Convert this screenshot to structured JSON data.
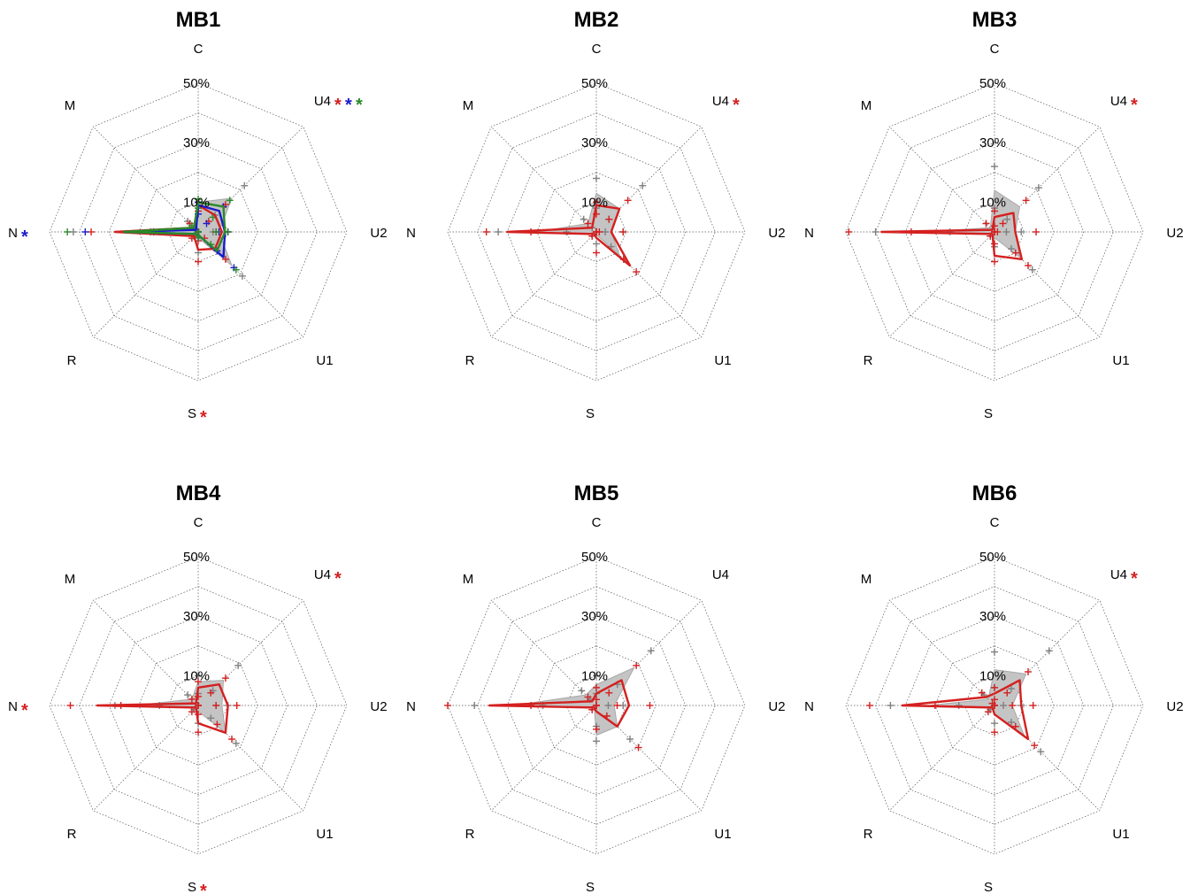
{
  "chart_data": [
    {
      "type": "radar",
      "title": "MB1",
      "axes": [
        {
          "label": "C",
          "marks": [
            "",
            "",
            ""
          ]
        },
        {
          "label": "U4",
          "marks": [
            "*",
            "*",
            "*"
          ]
        },
        {
          "label": "U2",
          "marks": [
            "",
            "",
            ""
          ]
        },
        {
          "label": "U1",
          "marks": [
            "",
            "",
            ""
          ]
        },
        {
          "label": "S",
          "marks": [
            "*",
            "",
            ""
          ]
        },
        {
          "label": "R",
          "marks": [
            "",
            "",
            ""
          ]
        },
        {
          "label": "N",
          "marks": [
            "",
            "*",
            ""
          ]
        },
        {
          "label": "M",
          "marks": [
            "",
            "",
            ""
          ]
        }
      ],
      "rlim": [
        0,
        50
      ],
      "rticks": [
        "10%",
        "30%",
        "50%"
      ],
      "reference": {
        "values": [
          10,
          16,
          7,
          16,
          2,
          1,
          27,
          2
        ],
        "upper": [
          10,
          22,
          10,
          21,
          7,
          2,
          42,
          5
        ],
        "lower": [
          8,
          8,
          5,
          6,
          0,
          0,
          13,
          0
        ]
      },
      "series": [
        {
          "color": "#d42020",
          "values": [
            9,
            8,
            8,
            8,
            6,
            2,
            28,
            2
          ],
          "upper": [
            10,
            13,
            10,
            13,
            10,
            3,
            36,
            4
          ],
          "lower": [
            7,
            5,
            6,
            3,
            3,
            1,
            16,
            1
          ]
        },
        {
          "color": "#1a1acc",
          "values": [
            9,
            10,
            9,
            12,
            1,
            1,
            25,
            1
          ],
          "upper": [
            10,
            12,
            10,
            17,
            2,
            2,
            38,
            2
          ],
          "lower": [
            6,
            4,
            7,
            9,
            0,
            0,
            15,
            0
          ]
        },
        {
          "color": "#2a8a2a",
          "values": [
            10,
            12,
            9,
            9,
            1,
            1,
            25,
            2
          ],
          "upper": [
            11,
            15,
            10,
            18,
            2,
            2,
            44,
            3
          ],
          "lower": [
            8,
            7,
            6,
            6,
            0,
            0,
            16,
            0
          ]
        }
      ]
    },
    {
      "type": "radar",
      "title": "MB2",
      "axes": [
        {
          "label": "C",
          "marks": [
            ""
          ]
        },
        {
          "label": "U4",
          "marks": [
            "*"
          ]
        },
        {
          "label": "U2",
          "marks": [
            ""
          ]
        },
        {
          "label": "U1",
          "marks": [
            ""
          ]
        },
        {
          "label": "S",
          "marks": [
            ""
          ]
        },
        {
          "label": "R",
          "marks": [
            ""
          ]
        },
        {
          "label": "N",
          "marks": [
            ""
          ]
        },
        {
          "label": "M",
          "marks": [
            ""
          ]
        }
      ],
      "rlim": [
        0,
        50
      ],
      "rticks": [
        "10%",
        "30%",
        "50%"
      ],
      "reference": {
        "values": [
          13,
          11,
          5,
          11,
          1,
          1,
          20,
          4
        ],
        "upper": [
          18,
          22,
          9,
          13,
          4,
          2,
          33,
          6
        ],
        "lower": [
          8,
          6,
          3,
          7,
          0,
          0,
          10,
          2
        ]
      },
      "series": [
        {
          "color": "#d42020",
          "values": [
            9,
            11,
            5,
            16,
            2,
            1,
            30,
            2
          ],
          "upper": [
            10,
            15,
            9,
            19,
            7,
            2,
            37,
            4
          ],
          "lower": [
            6,
            6,
            1,
            13,
            0,
            0,
            22,
            0
          ]
        }
      ]
    },
    {
      "type": "radar",
      "title": "MB3",
      "axes": [
        {
          "label": "C",
          "marks": [
            ""
          ]
        },
        {
          "label": "U4",
          "marks": [
            "*"
          ]
        },
        {
          "label": "U2",
          "marks": [
            ""
          ]
        },
        {
          "label": "U1",
          "marks": [
            ""
          ]
        },
        {
          "label": "S",
          "marks": [
            ""
          ]
        },
        {
          "label": "R",
          "marks": [
            ""
          ]
        },
        {
          "label": "N",
          "marks": [
            ""
          ]
        },
        {
          "label": "M",
          "marks": [
            ""
          ]
        }
      ],
      "rlim": [
        0,
        50
      ],
      "rticks": [
        "10%",
        "30%",
        "50%"
      ],
      "reference": {
        "values": [
          14,
          12,
          7,
          12,
          2,
          1,
          24,
          2
        ],
        "upper": [
          22,
          21,
          9,
          18,
          5,
          2,
          40,
          4
        ],
        "lower": [
          8,
          6,
          4,
          8,
          0,
          0,
          15,
          0
        ]
      },
      "series": [
        {
          "color": "#d42020",
          "values": [
            5,
            9,
            7,
            13,
            8,
            1,
            38,
            1
          ],
          "upper": [
            7,
            15,
            14,
            16,
            10,
            2,
            49,
            4
          ],
          "lower": [
            2,
            4,
            1,
            10,
            4,
            0,
            28,
            0
          ]
        }
      ]
    },
    {
      "type": "radar",
      "title": "MB4",
      "axes": [
        {
          "label": "C",
          "marks": [
            ""
          ]
        },
        {
          "label": "U4",
          "marks": [
            "*"
          ]
        },
        {
          "label": "U2",
          "marks": [
            ""
          ]
        },
        {
          "label": "U1",
          "marks": [
            ""
          ]
        },
        {
          "label": "S",
          "marks": [
            "*"
          ]
        },
        {
          "label": "R",
          "marks": [
            ""
          ]
        },
        {
          "label": "N",
          "marks": [
            "*"
          ]
        },
        {
          "label": "M",
          "marks": [
            ""
          ]
        }
      ],
      "rlim": [
        0,
        50
      ],
      "rticks": [
        "10%",
        "30%",
        "50%"
      ],
      "reference": {
        "values": [
          8,
          12,
          8,
          13,
          2,
          1,
          21,
          3
        ],
        "upper": [
          10,
          19,
          10,
          18,
          6,
          2,
          28,
          5
        ],
        "lower": [
          4,
          7,
          6,
          6,
          0,
          0,
          13,
          1
        ]
      },
      "series": [
        {
          "color": "#d42020",
          "values": [
            6,
            10,
            10,
            13,
            6,
            1,
            34,
            1
          ],
          "upper": [
            8,
            13,
            13,
            16,
            9,
            3,
            43,
            3
          ],
          "lower": [
            3,
            6,
            6,
            9,
            3,
            0,
            26,
            0
          ]
        }
      ]
    },
    {
      "type": "radar",
      "title": "MB5",
      "axes": [
        {
          "label": "C",
          "marks": [
            ""
          ]
        },
        {
          "label": "U4",
          "marks": [
            ""
          ]
        },
        {
          "label": "U2",
          "marks": [
            ""
          ]
        },
        {
          "label": "U1",
          "marks": [
            ""
          ]
        },
        {
          "label": "S",
          "marks": [
            ""
          ]
        },
        {
          "label": "R",
          "marks": [
            ""
          ]
        },
        {
          "label": "N",
          "marks": [
            ""
          ]
        },
        {
          "label": "M",
          "marks": [
            ""
          ]
        }
      ],
      "rlim": [
        0,
        50
      ],
      "rticks": [
        "10%",
        "30%",
        "50%"
      ],
      "reference": {
        "values": [
          7,
          18,
          6,
          10,
          10,
          1,
          28,
          5
        ],
        "upper": [
          10,
          26,
          9,
          16,
          12,
          2,
          41,
          7
        ],
        "lower": [
          4,
          10,
          4,
          5,
          7,
          0,
          18,
          3
        ]
      },
      "series": [
        {
          "color": "#d42020",
          "values": [
            4,
            12,
            11,
            10,
            2,
            1,
            36,
            2
          ],
          "upper": [
            6,
            19,
            18,
            20,
            8,
            2,
            50,
            4
          ],
          "lower": [
            2,
            6,
            7,
            5,
            0,
            0,
            22,
            0
          ]
        }
      ]
    },
    {
      "type": "radar",
      "title": "MB6",
      "axes": [
        {
          "label": "C",
          "marks": [
            ""
          ]
        },
        {
          "label": "U4",
          "marks": [
            "*"
          ]
        },
        {
          "label": "U2",
          "marks": [
            ""
          ]
        },
        {
          "label": "U1",
          "marks": [
            ""
          ]
        },
        {
          "label": "S",
          "marks": [
            ""
          ]
        },
        {
          "label": "R",
          "marks": [
            ""
          ]
        },
        {
          "label": "N",
          "marks": [
            ""
          ]
        },
        {
          "label": "M",
          "marks": [
            ""
          ]
        }
      ],
      "rlim": [
        0,
        50
      ],
      "rticks": [
        "10%",
        "30%",
        "50%"
      ],
      "reference": {
        "values": [
          12,
          15,
          6,
          14,
          3,
          1,
          22,
          3
        ],
        "upper": [
          18,
          26,
          9,
          22,
          6,
          2,
          35,
          5
        ],
        "lower": [
          6,
          8,
          3,
          8,
          0,
          0,
          12,
          1
        ]
      },
      "series": [
        {
          "color": "#d42020",
          "values": [
            4,
            12,
            9,
            16,
            3,
            1,
            31,
            4
          ],
          "upper": [
            6,
            16,
            13,
            19,
            9,
            3,
            42,
            6
          ],
          "lower": [
            2,
            6,
            6,
            10,
            0,
            0,
            20,
            1
          ]
        }
      ]
    }
  ]
}
